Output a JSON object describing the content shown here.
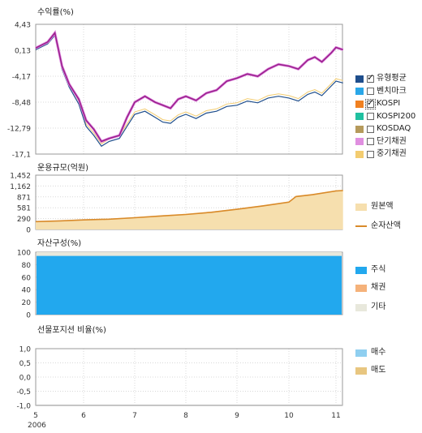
{
  "colors": {
    "fund": "#1f4e8c",
    "benchmark": "#2aa7e8",
    "kospi": "#f08020",
    "kospi200": "#20c0a0",
    "kosdaq": "#b59a5c",
    "short_bond": "#e08fe0",
    "mid_bond": "#f3cc70",
    "fund_highlight": "#9b1f8e",
    "principal_fill": "#f6dfae",
    "net_asset_line": "#d98a2a",
    "stock": "#22a8ee",
    "bond": "#f5b27a",
    "other": "#e8e8dc",
    "buy": "#8fcff0",
    "sell": "#e8c680"
  },
  "x_axis": {
    "tick_labels": [
      "5",
      "6",
      "7",
      "8",
      "9",
      "10",
      "11"
    ],
    "year_label": "2006"
  },
  "chart_data": [
    {
      "type": "line",
      "title": "수익률(%)",
      "y_ticks": [
        "4,43",
        "0,13",
        "-4,17",
        "-8,48",
        "-12,79",
        "-17,1"
      ],
      "ylim": [
        -17.1,
        4.43
      ],
      "x_months": [
        5,
        5.25,
        5.4,
        5.55,
        5.7,
        5.9,
        6.05,
        6.2,
        6.35,
        6.5,
        6.7,
        6.85,
        7.0,
        7.2,
        7.4,
        7.55,
        7.7,
        7.85,
        8.0,
        8.2,
        8.4,
        8.6,
        8.8,
        9.0,
        9.2,
        9.4,
        9.6,
        9.8,
        10.0,
        10.2,
        10.4,
        10.55,
        10.7,
        10.9,
        11.0,
        11.15
      ],
      "series": [
        {
          "name": "유형평균",
          "values": [
            0.5,
            1.5,
            3.0,
            -2.5,
            -5.5,
            -8.0,
            -11.5,
            -13.0,
            -15.0,
            -14.5,
            -14.0,
            -11.0,
            -8.5,
            -7.5,
            -8.5,
            -9.0,
            -9.5,
            -8.0,
            -7.5,
            -8.2,
            -7.0,
            -6.5,
            -5.0,
            -4.5,
            -3.8,
            -4.2,
            -3.0,
            -2.2,
            -2.5,
            -3.0,
            -1.5,
            -1.0,
            -1.8,
            -0.3,
            0.6,
            0.2
          ]
        },
        {
          "name": "KOSPI",
          "values": [
            0.2,
            1.2,
            2.6,
            -3.0,
            -6.0,
            -8.8,
            -12.5,
            -14.0,
            -15.8,
            -15.0,
            -14.5,
            -12.5,
            -10.5,
            -10.0,
            -11.0,
            -11.8,
            -12.0,
            -11.0,
            -10.5,
            -11.2,
            -10.3,
            -10.0,
            -9.2,
            -9.0,
            -8.3,
            -8.6,
            -7.8,
            -7.5,
            -7.8,
            -8.3,
            -7.2,
            -6.8,
            -7.4,
            -5.8,
            -5.0,
            -5.3
          ]
        }
      ]
    },
    {
      "type": "area",
      "title": "운용규모(억원)",
      "y_ticks": [
        "1,452",
        "1,162",
        "871",
        "581",
        "290",
        "0"
      ],
      "ylim": [
        0,
        1452
      ],
      "x_months": [
        5,
        5.5,
        6,
        6.5,
        7,
        7.5,
        8,
        8.5,
        9,
        9.5,
        10,
        10.15,
        10.5,
        11,
        11.15
      ],
      "series": [
        {
          "name": "원본액",
          "values": [
            220,
            240,
            270,
            290,
            330,
            380,
            420,
            480,
            560,
            650,
            750,
            900,
            950,
            1050,
            1060
          ]
        },
        {
          "name": "순자산액",
          "values": [
            210,
            230,
            255,
            275,
            315,
            360,
            400,
            460,
            540,
            630,
            730,
            880,
            930,
            1030,
            1040
          ]
        }
      ]
    },
    {
      "type": "area",
      "title": "자산구성(%)",
      "y_ticks": [
        "100",
        "80",
        "60",
        "40",
        "20",
        "0"
      ],
      "ylim": [
        0,
        100
      ],
      "series": [
        {
          "name": "주식",
          "values": [
            94
          ]
        },
        {
          "name": "채권",
          "values": [
            0
          ]
        },
        {
          "name": "기타",
          "values": [
            6
          ]
        }
      ]
    },
    {
      "type": "bar",
      "title": "선물포지션 비율(%)",
      "y_ticks": [
        "1,0",
        "0,5",
        "0,0",
        "-0,5",
        "-1,0"
      ],
      "ylim": [
        -1.0,
        1.0
      ],
      "series": [
        {
          "name": "매수",
          "values": []
        },
        {
          "name": "매도",
          "values": []
        }
      ]
    }
  ],
  "legend_returns": {
    "items": [
      {
        "label": "유형평균",
        "color_key": "fund",
        "checked": true,
        "focus": false
      },
      {
        "label": "벤치마크",
        "color_key": "benchmark",
        "checked": false,
        "focus": false
      },
      {
        "label": "KOSPI",
        "color_key": "kospi",
        "checked": true,
        "focus": true
      },
      {
        "label": "KOSPI200",
        "color_key": "kospi200",
        "checked": false,
        "focus": false
      },
      {
        "label": "KOSDAQ",
        "color_key": "kosdaq",
        "checked": false,
        "focus": false
      },
      {
        "label": "단기채권",
        "color_key": "short_bond",
        "checked": false,
        "focus": false
      },
      {
        "label": "중기채권",
        "color_key": "mid_bond",
        "checked": false,
        "focus": false
      }
    ]
  },
  "legend_aum": {
    "principal": "원본액",
    "net_assets": "순자산액"
  },
  "legend_assets": {
    "stock": "주식",
    "bond": "채권",
    "other": "기타"
  },
  "legend_futures": {
    "buy": "매수",
    "sell": "매도"
  }
}
